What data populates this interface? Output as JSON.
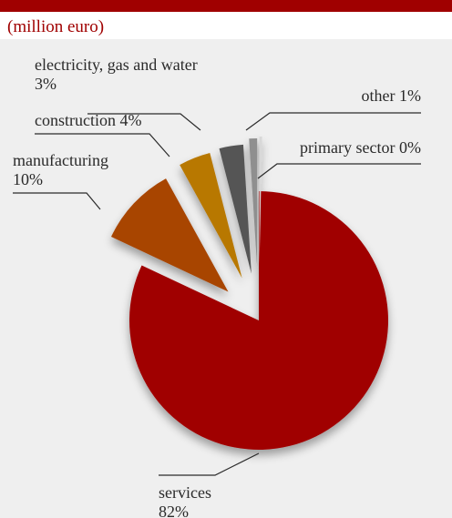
{
  "header": {
    "subtitle": "(million euro)"
  },
  "colors": {
    "accent": "#a00000",
    "background": "#efefef"
  },
  "chart_data": {
    "type": "pie",
    "title": "",
    "subtitle": "(million euro)",
    "slices": [
      {
        "name": "services",
        "percent": 82,
        "label_line1": "services",
        "label_line2": "82%",
        "color": "#a00000"
      },
      {
        "name": "manufacturing",
        "percent": 10,
        "label_line1": "manufacturing",
        "label_line2": "10%",
        "color": "#a84400"
      },
      {
        "name": "construction",
        "percent": 4,
        "label_line1": "construction 4%",
        "label_line2": "",
        "color": "#b87800"
      },
      {
        "name": "electricity, gas and water",
        "percent": 3,
        "label_line1": "electricity, gas and water",
        "label_line2": "3%",
        "color": "#555555"
      },
      {
        "name": "other",
        "percent": 1,
        "label_line1": "other 1%",
        "label_line2": "",
        "color": "#8f8f8f"
      },
      {
        "name": "primary sector",
        "percent": 0,
        "label_line1": "primary sector 0%",
        "label_line2": "",
        "color": "#d8d8d8"
      }
    ]
  }
}
